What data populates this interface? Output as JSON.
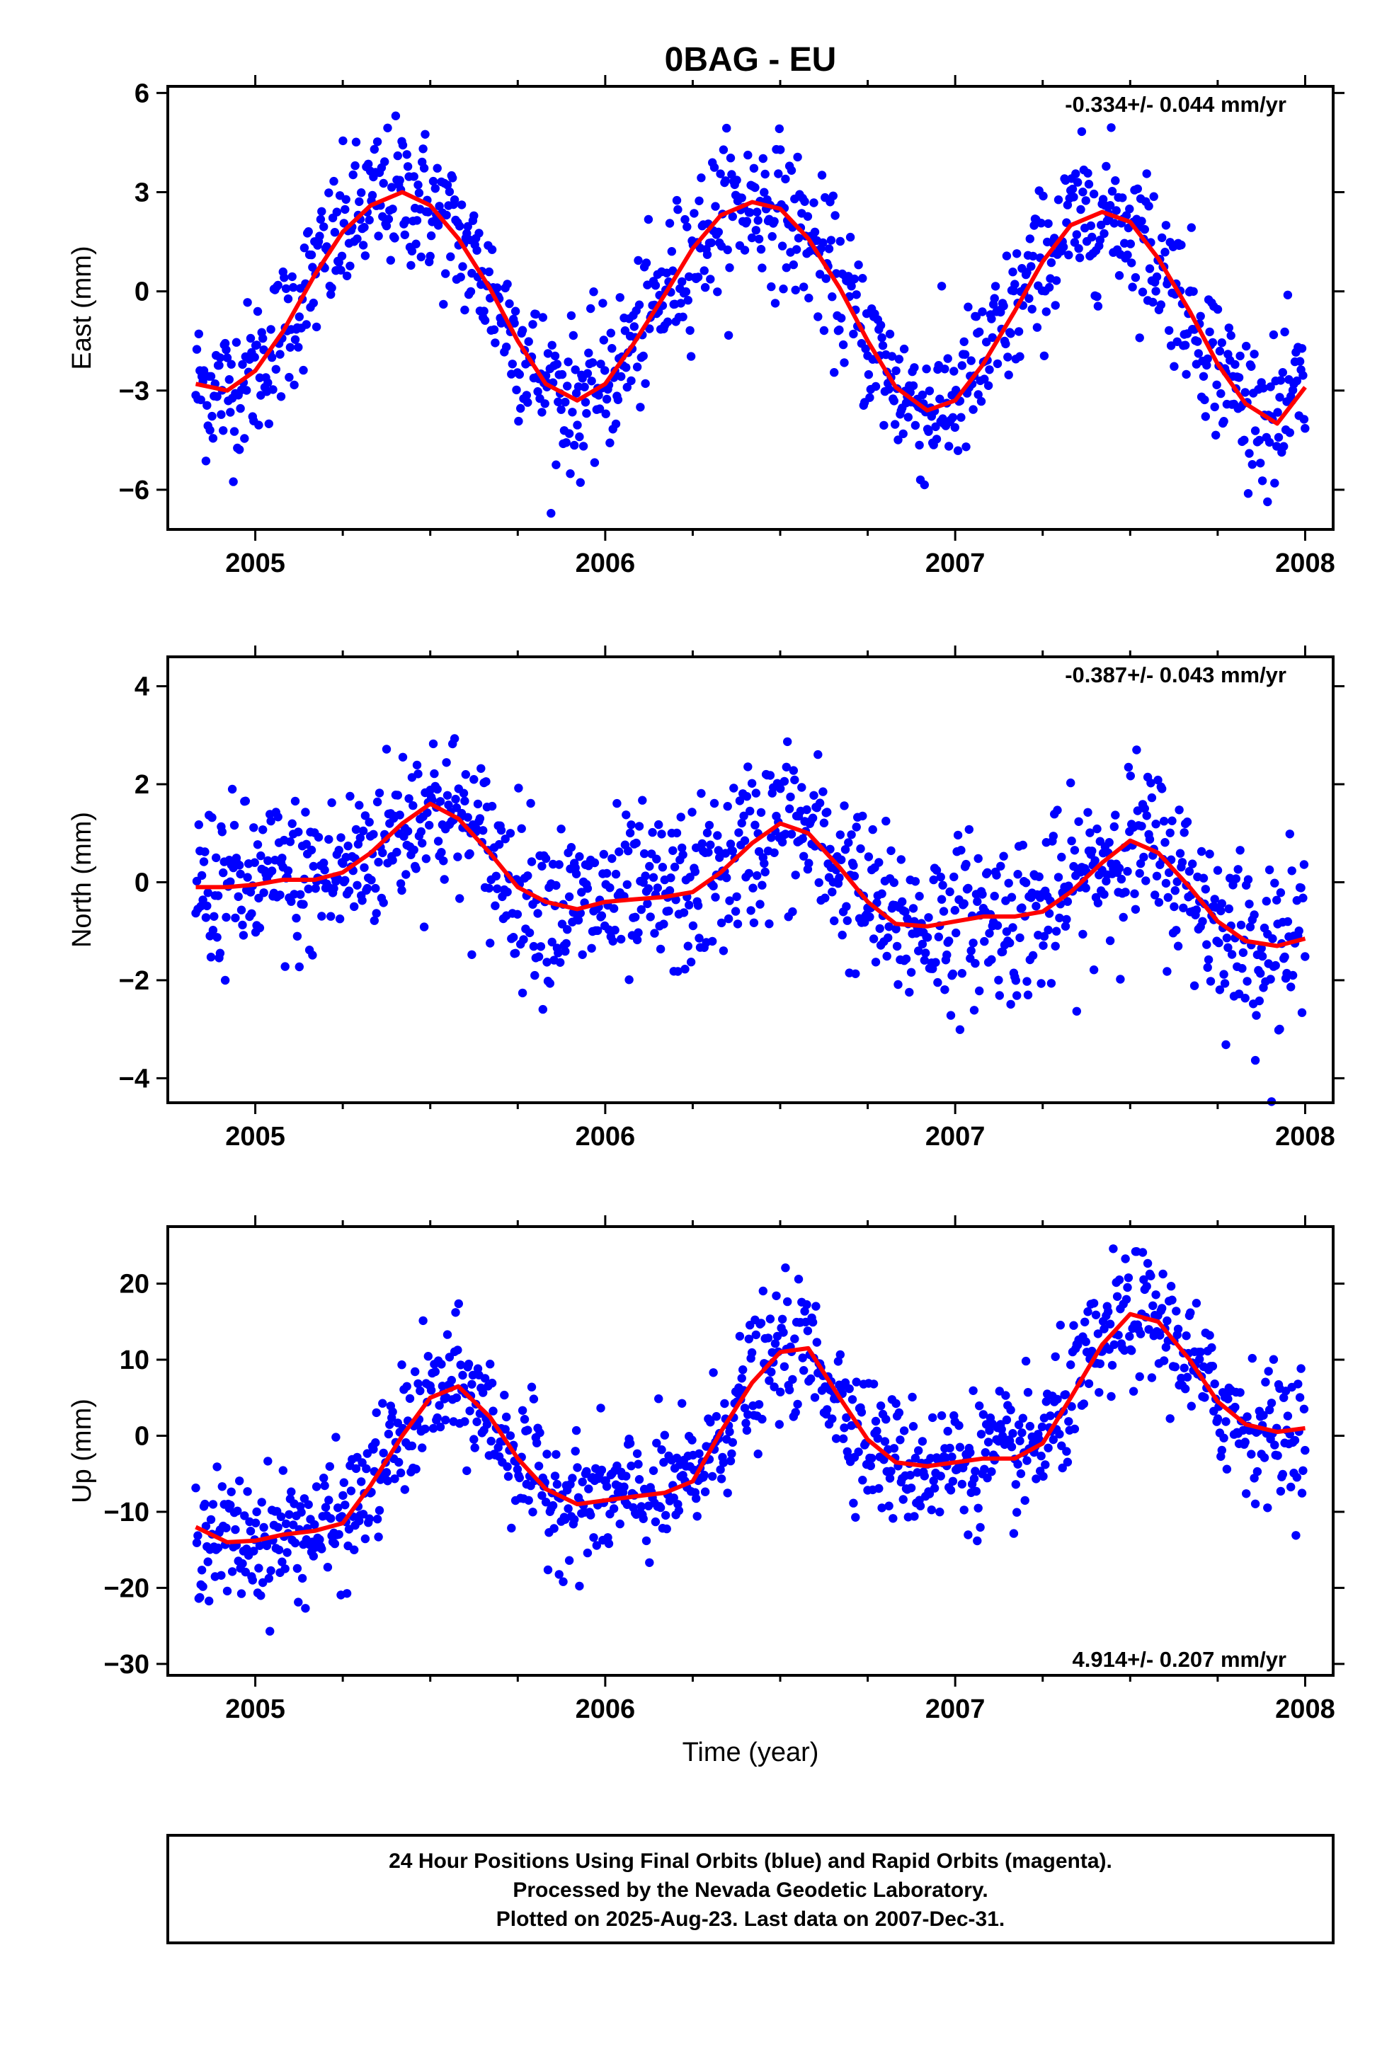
{
  "chart_data": {
    "title": "0BAG - EU",
    "type": "scatter",
    "x_label": "Time (year)",
    "x_range": [
      2004.75,
      2008.08
    ],
    "x_ticks": [
      2005,
      2006,
      2007,
      2008
    ],
    "colors": {
      "points": "#0000ff",
      "fit": "#ff0000",
      "axes": "#000000"
    },
    "panels": [
      {
        "ylabel": "East (mm)",
        "ylim": [
          -7.2,
          6.2
        ],
        "yticks": [
          6,
          3,
          0,
          -3,
          -6
        ],
        "ytick_labels": [
          "6",
          "3",
          "0",
          "−3",
          "−6"
        ],
        "rate_text": "-0.334+/- 0.044 mm/yr",
        "rate_position": "top-right",
        "fit": [
          [
            2004.83,
            -2.8
          ],
          [
            2004.92,
            -3.0
          ],
          [
            2005.0,
            -2.4
          ],
          [
            2005.08,
            -1.2
          ],
          [
            2005.17,
            0.5
          ],
          [
            2005.25,
            1.8
          ],
          [
            2005.33,
            2.6
          ],
          [
            2005.42,
            3.0
          ],
          [
            2005.5,
            2.6
          ],
          [
            2005.58,
            1.6
          ],
          [
            2005.67,
            0.1
          ],
          [
            2005.75,
            -1.5
          ],
          [
            2005.83,
            -2.8
          ],
          [
            2005.92,
            -3.3
          ],
          [
            2006.0,
            -2.8
          ],
          [
            2006.08,
            -1.6
          ],
          [
            2006.17,
            -0.1
          ],
          [
            2006.25,
            1.3
          ],
          [
            2006.33,
            2.3
          ],
          [
            2006.42,
            2.7
          ],
          [
            2006.5,
            2.5
          ],
          [
            2006.58,
            1.6
          ],
          [
            2006.67,
            0.1
          ],
          [
            2006.75,
            -1.5
          ],
          [
            2006.83,
            -2.9
          ],
          [
            2006.92,
            -3.6
          ],
          [
            2007.0,
            -3.3
          ],
          [
            2007.08,
            -2.2
          ],
          [
            2007.17,
            -0.6
          ],
          [
            2007.25,
            0.9
          ],
          [
            2007.33,
            2.0
          ],
          [
            2007.42,
            2.4
          ],
          [
            2007.5,
            2.1
          ],
          [
            2007.58,
            1.0
          ],
          [
            2007.67,
            -0.6
          ],
          [
            2007.75,
            -2.2
          ],
          [
            2007.83,
            -3.4
          ],
          [
            2007.92,
            -4.0
          ],
          [
            2008.0,
            -2.9
          ]
        ]
      },
      {
        "ylabel": "North (mm)",
        "ylim": [
          -4.5,
          4.6
        ],
        "yticks": [
          4,
          2,
          0,
          -2,
          -4
        ],
        "ytick_labels": [
          "4",
          "2",
          "0",
          "−2",
          "−4"
        ],
        "rate_text": "-0.387+/- 0.043 mm/yr",
        "rate_position": "top-right",
        "fit": [
          [
            2004.83,
            -0.1
          ],
          [
            2004.92,
            -0.1
          ],
          [
            2005.0,
            -0.05
          ],
          [
            2005.08,
            0.05
          ],
          [
            2005.17,
            0.05
          ],
          [
            2005.25,
            0.2
          ],
          [
            2005.33,
            0.6
          ],
          [
            2005.42,
            1.2
          ],
          [
            2005.5,
            1.6
          ],
          [
            2005.58,
            1.3
          ],
          [
            2005.67,
            0.6
          ],
          [
            2005.75,
            -0.1
          ],
          [
            2005.83,
            -0.4
          ],
          [
            2005.92,
            -0.55
          ],
          [
            2006.0,
            -0.4
          ],
          [
            2006.08,
            -0.35
          ],
          [
            2006.17,
            -0.3
          ],
          [
            2006.25,
            -0.2
          ],
          [
            2006.33,
            0.2
          ],
          [
            2006.42,
            0.8
          ],
          [
            2006.5,
            1.2
          ],
          [
            2006.58,
            1.0
          ],
          [
            2006.67,
            0.3
          ],
          [
            2006.75,
            -0.4
          ],
          [
            2006.83,
            -0.85
          ],
          [
            2006.92,
            -0.9
          ],
          [
            2007.0,
            -0.8
          ],
          [
            2007.08,
            -0.7
          ],
          [
            2007.17,
            -0.7
          ],
          [
            2007.25,
            -0.6
          ],
          [
            2007.33,
            -0.2
          ],
          [
            2007.42,
            0.4
          ],
          [
            2007.5,
            0.85
          ],
          [
            2007.58,
            0.6
          ],
          [
            2007.67,
            -0.1
          ],
          [
            2007.75,
            -0.8
          ],
          [
            2007.83,
            -1.2
          ],
          [
            2007.92,
            -1.3
          ],
          [
            2008.0,
            -1.15
          ]
        ]
      },
      {
        "ylabel": "Up (mm)",
        "ylim": [
          -31.5,
          27.5
        ],
        "yticks": [
          20,
          10,
          0,
          -10,
          -20,
          -30
        ],
        "ytick_labels": [
          "20",
          "10",
          "0",
          "−10",
          "−20",
          "−30"
        ],
        "rate_text": "4.914+/- 0.207 mm/yr",
        "rate_position": "bottom-right",
        "fit": [
          [
            2004.83,
            -12.0
          ],
          [
            2004.92,
            -14.0
          ],
          [
            2005.0,
            -13.8
          ],
          [
            2005.08,
            -13.0
          ],
          [
            2005.17,
            -12.5
          ],
          [
            2005.25,
            -11.5
          ],
          [
            2005.33,
            -6.5
          ],
          [
            2005.42,
            0.0
          ],
          [
            2005.5,
            5.0
          ],
          [
            2005.58,
            6.5
          ],
          [
            2005.67,
            2.5
          ],
          [
            2005.75,
            -3.0
          ],
          [
            2005.83,
            -7.0
          ],
          [
            2005.92,
            -9.0
          ],
          [
            2006.0,
            -8.5
          ],
          [
            2006.08,
            -8.0
          ],
          [
            2006.17,
            -7.5
          ],
          [
            2006.25,
            -6.0
          ],
          [
            2006.33,
            0.5
          ],
          [
            2006.42,
            7.0
          ],
          [
            2006.5,
            11.0
          ],
          [
            2006.58,
            11.5
          ],
          [
            2006.67,
            5.0
          ],
          [
            2006.75,
            -0.5
          ],
          [
            2006.83,
            -3.5
          ],
          [
            2006.92,
            -4.0
          ],
          [
            2007.0,
            -3.5
          ],
          [
            2007.08,
            -3.0
          ],
          [
            2007.17,
            -3.0
          ],
          [
            2007.25,
            -1.0
          ],
          [
            2007.33,
            5.0
          ],
          [
            2007.42,
            12.0
          ],
          [
            2007.5,
            16.0
          ],
          [
            2007.58,
            15.0
          ],
          [
            2007.67,
            10.0
          ],
          [
            2007.75,
            4.5
          ],
          [
            2007.83,
            1.5
          ],
          [
            2007.92,
            0.5
          ],
          [
            2008.0,
            1.0
          ]
        ]
      }
    ]
  },
  "footer": {
    "line1": "24 Hour Positions Using Final Orbits (blue) and Rapid Orbits (magenta).",
    "line2": "Processed by the Nevada Geodetic Laboratory.",
    "line3": "Plotted on 2025-Aug-23. Last data on 2007-Dec-31."
  }
}
